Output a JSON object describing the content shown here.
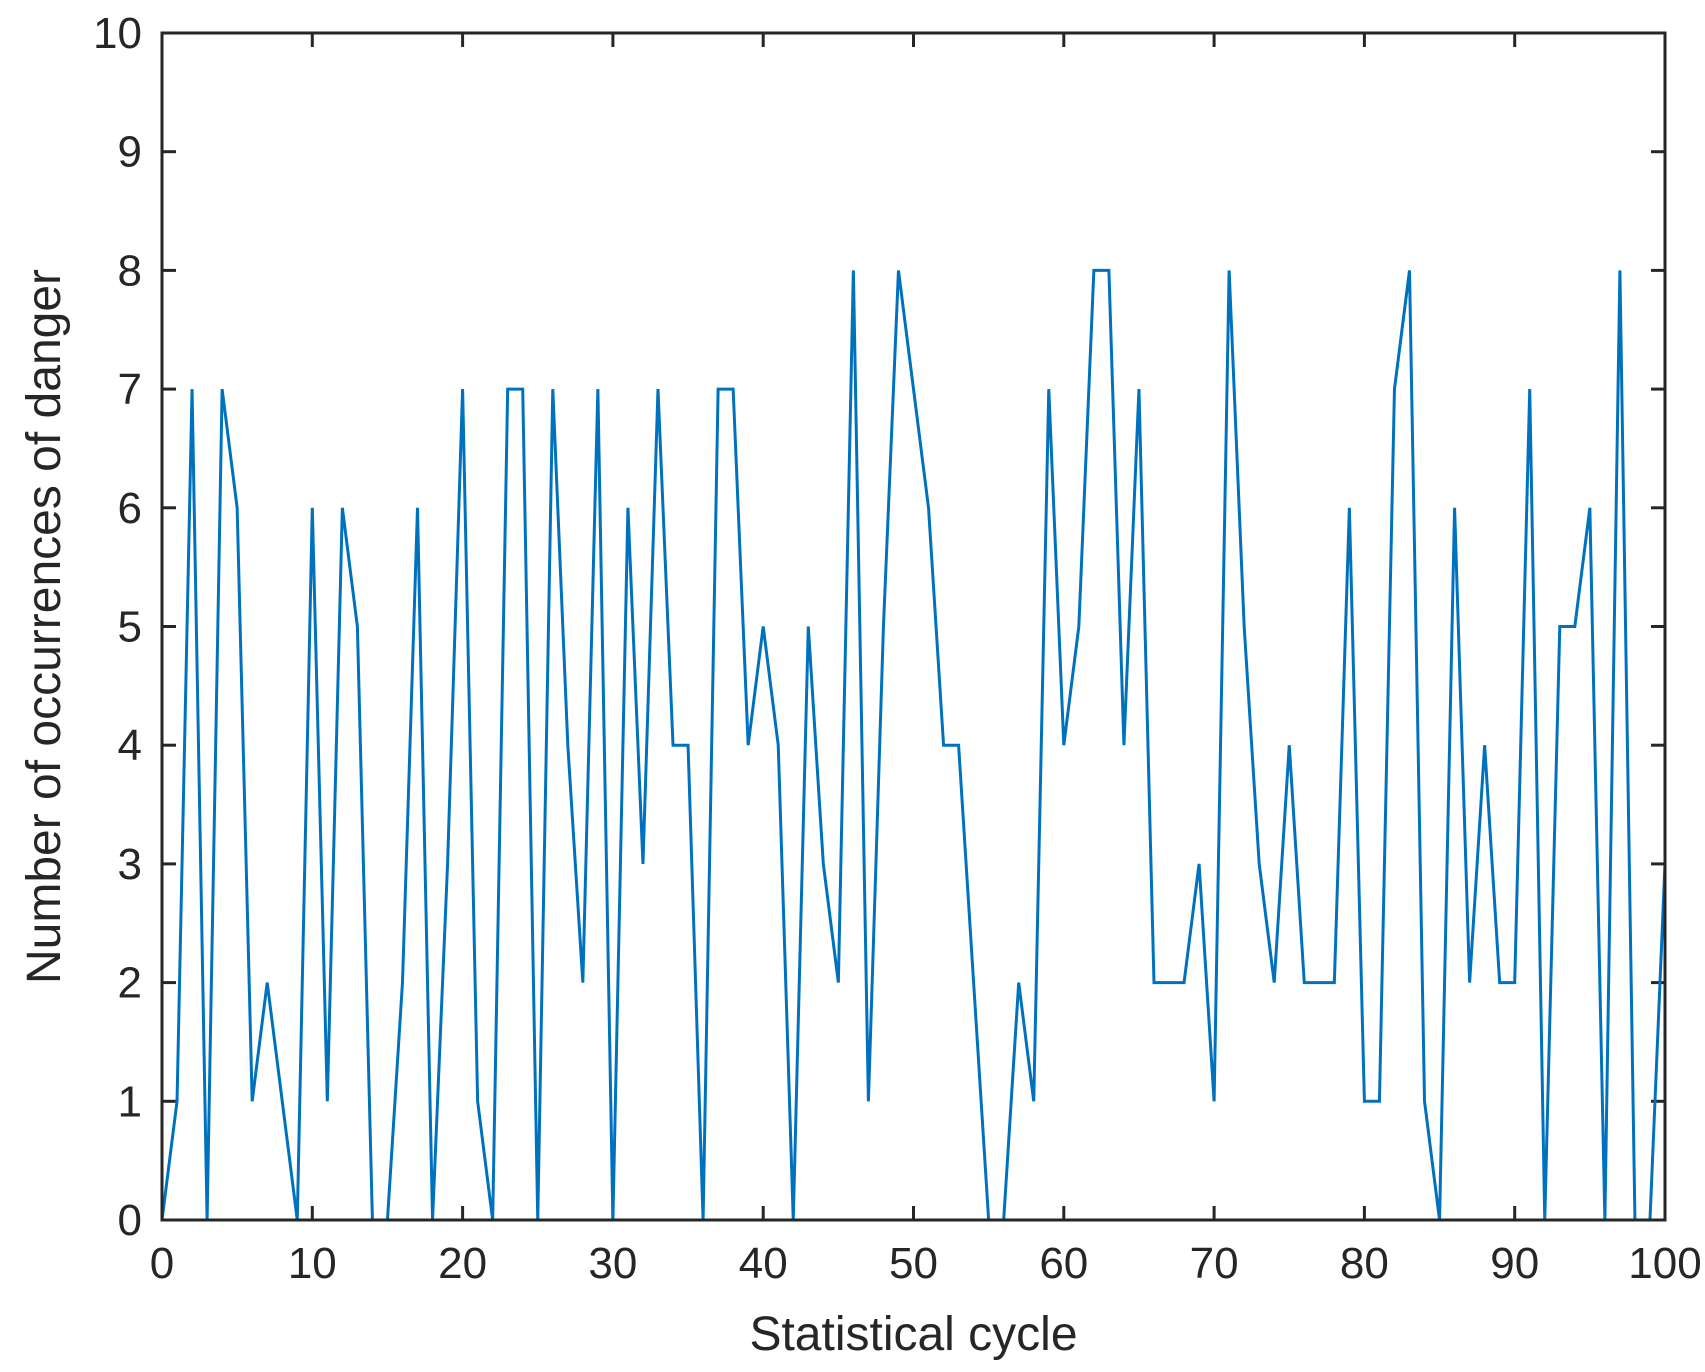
{
  "chart_data": {
    "type": "line",
    "title": "",
    "xlabel": "Statistical cycle",
    "ylabel": "Number of occurrences of danger",
    "xlim": [
      0,
      100
    ],
    "ylim": [
      0,
      10
    ],
    "x_ticks": [
      0,
      10,
      20,
      30,
      40,
      50,
      60,
      70,
      80,
      90,
      100
    ],
    "y_ticks": [
      0,
      1,
      2,
      3,
      4,
      5,
      6,
      7,
      8,
      9,
      10
    ],
    "x_tick_labels": [
      "0",
      "10",
      "20",
      "30",
      "40",
      "50",
      "60",
      "70",
      "80",
      "90",
      "100"
    ],
    "y_tick_labels": [
      "0",
      "1",
      "2",
      "3",
      "4",
      "5",
      "6",
      "7",
      "8",
      "9",
      "10"
    ],
    "grid": false,
    "legend": "none",
    "series": [
      {
        "color": "#0072BD",
        "x": [
          0,
          1,
          2,
          3,
          4,
          5,
          6,
          7,
          8,
          9,
          10,
          11,
          12,
          13,
          14,
          15,
          16,
          17,
          18,
          19,
          20,
          21,
          22,
          23,
          24,
          25,
          26,
          27,
          28,
          29,
          30,
          31,
          32,
          33,
          34,
          35,
          36,
          37,
          38,
          39,
          40,
          41,
          42,
          43,
          44,
          45,
          46,
          47,
          48,
          49,
          50,
          51,
          52,
          53,
          54,
          55,
          56,
          57,
          58,
          59,
          60,
          61,
          62,
          63,
          64,
          65,
          66,
          67,
          68,
          69,
          70,
          71,
          72,
          73,
          74,
          75,
          76,
          77,
          78,
          79,
          80,
          81,
          82,
          83,
          84,
          85,
          86,
          87,
          88,
          89,
          90,
          91,
          92,
          93,
          94,
          95,
          96,
          97,
          98,
          99,
          100
        ],
        "values": [
          0,
          1,
          7,
          0,
          7,
          6,
          1,
          2,
          1,
          0,
          6,
          1,
          6,
          5,
          0,
          0,
          2,
          6,
          0,
          3,
          7,
          1,
          0,
          7,
          7,
          0,
          7,
          4,
          2,
          7,
          0,
          6,
          3,
          7,
          4,
          4,
          0,
          7,
          7,
          4,
          5,
          4,
          0,
          5,
          3,
          2,
          8,
          1,
          5,
          8,
          7,
          6,
          4,
          4,
          2,
          0,
          0,
          2,
          1,
          7,
          4,
          5,
          8,
          8,
          4,
          7,
          2,
          2,
          2,
          3,
          1,
          8,
          5,
          3,
          2,
          4,
          2,
          2,
          2,
          6,
          1,
          1,
          7,
          8,
          1,
          0,
          6,
          2,
          4,
          2,
          2,
          7,
          0,
          5,
          5,
          6,
          0,
          8,
          0,
          0,
          3
        ]
      }
    ]
  }
}
